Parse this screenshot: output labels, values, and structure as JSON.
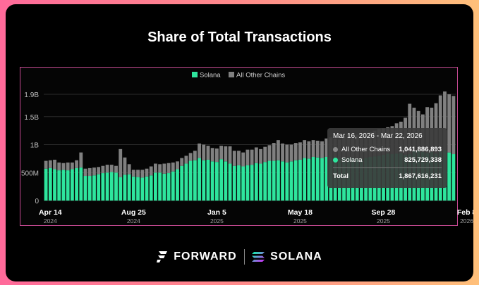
{
  "title": "Share of Total Transactions",
  "footer": {
    "brand_left": "FORWARD",
    "brand_right": "SOLANA"
  },
  "tooltip": {
    "date_range": "Mar 16, 2026 - Mar 22, 2026",
    "rows": [
      {
        "label": "All Other Chains",
        "value": "1,041,886,893",
        "color": "#8a8a8a"
      },
      {
        "label": "Solana",
        "value": "825,729,338",
        "color": "#2ee59d"
      }
    ],
    "total_label": "Total",
    "total_value": "1,867,616,231"
  },
  "chart_data": {
    "type": "bar",
    "stacked": true,
    "title": "Share of Total Transactions",
    "series": [
      {
        "name": "Solana",
        "color": "#2ee59d",
        "values": [
          0.57,
          0.58,
          0.56,
          0.54,
          0.55,
          0.54,
          0.56,
          0.58,
          0.59,
          0.44,
          0.44,
          0.45,
          0.47,
          0.49,
          0.5,
          0.51,
          0.5,
          0.42,
          0.46,
          0.47,
          0.43,
          0.42,
          0.41,
          0.43,
          0.45,
          0.5,
          0.5,
          0.48,
          0.49,
          0.52,
          0.56,
          0.62,
          0.66,
          0.71,
          0.72,
          0.76,
          0.72,
          0.73,
          0.7,
          0.69,
          0.74,
          0.7,
          0.66,
          0.62,
          0.63,
          0.61,
          0.63,
          0.64,
          0.67,
          0.66,
          0.69,
          0.71,
          0.71,
          0.72,
          0.7,
          0.68,
          0.7,
          0.72,
          0.73,
          0.76,
          0.75,
          0.78,
          0.77,
          0.76,
          0.78,
          0.76,
          0.77,
          0.75,
          0.76,
          0.77,
          0.76,
          0.75,
          0.74,
          0.76,
          0.78,
          0.79,
          0.8,
          0.82,
          0.84,
          0.83,
          0.84,
          0.85,
          0.82,
          0.83,
          0.88,
          0.9,
          0.87,
          0.85,
          0.87,
          0.84,
          0.88,
          0.9,
          0.86,
          0.83
        ]
      },
      {
        "name": "All Other Chains",
        "color": "#808080",
        "values": [
          0.14,
          0.14,
          0.17,
          0.14,
          0.12,
          0.14,
          0.12,
          0.14,
          0.27,
          0.13,
          0.14,
          0.14,
          0.13,
          0.13,
          0.14,
          0.13,
          0.12,
          0.5,
          0.31,
          0.18,
          0.12,
          0.13,
          0.14,
          0.14,
          0.16,
          0.16,
          0.15,
          0.18,
          0.18,
          0.16,
          0.14,
          0.14,
          0.14,
          0.14,
          0.17,
          0.26,
          0.28,
          0.25,
          0.24,
          0.24,
          0.24,
          0.27,
          0.31,
          0.27,
          0.26,
          0.25,
          0.28,
          0.27,
          0.28,
          0.26,
          0.27,
          0.28,
          0.32,
          0.36,
          0.32,
          0.32,
          0.3,
          0.31,
          0.31,
          0.32,
          0.31,
          0.3,
          0.3,
          0.3,
          0.33,
          0.37,
          0.33,
          0.34,
          0.39,
          0.42,
          0.42,
          0.43,
          0.43,
          0.45,
          0.44,
          0.46,
          0.48,
          0.47,
          0.47,
          0.5,
          0.54,
          0.56,
          0.66,
          0.9,
          0.78,
          0.7,
          0.67,
          0.82,
          0.79,
          0.9,
          1.0,
          1.05,
          1.04,
          1.04
        ]
      }
    ],
    "y_ticks": [
      "0",
      "500M",
      "1B",
      "1.5B",
      "1.9B"
    ],
    "y_tick_values": [
      0,
      0.5,
      1.0,
      1.5,
      1.9
    ],
    "ylim": [
      0,
      2.0
    ],
    "x_ticks": [
      {
        "label": "Apr 14",
        "sub": "2024",
        "index": 1
      },
      {
        "label": "Aug 25",
        "sub": "2024",
        "index": 20
      },
      {
        "label": "Jan 5",
        "sub": "2025",
        "index": 39
      },
      {
        "label": "May 18",
        "sub": "2025",
        "index": 58
      },
      {
        "label": "Sep 28",
        "sub": "2025",
        "index": 77
      },
      {
        "label": "Feb 8",
        "sub": "2026",
        "index": 96
      }
    ],
    "legend": [
      "Solana",
      "All Other Chains"
    ],
    "legend_position": "top",
    "grid": true
  }
}
